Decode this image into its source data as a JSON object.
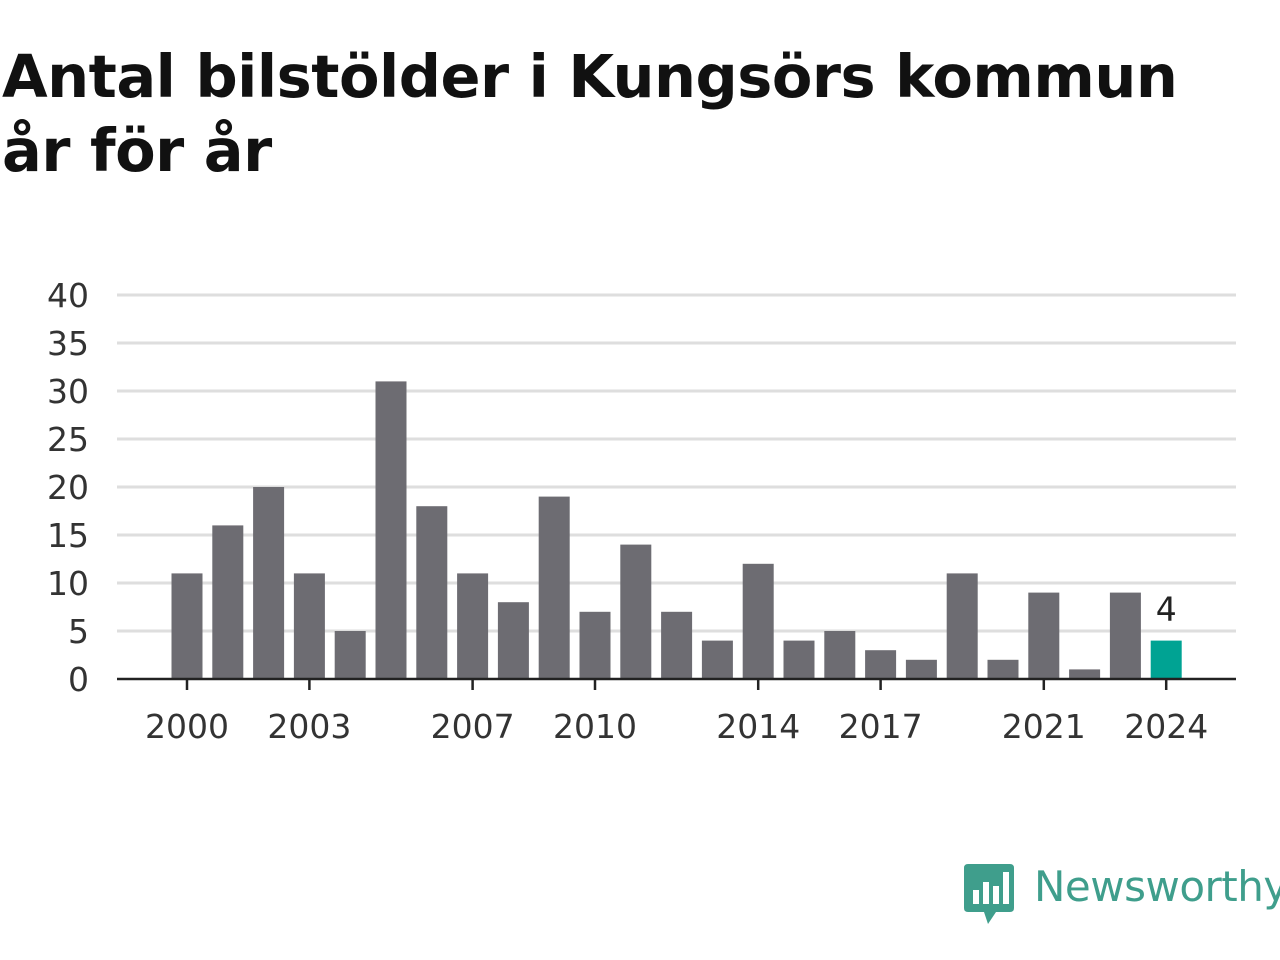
{
  "title": "Antal bilstölder i Kungsörs kommun år för år",
  "brand": {
    "name": "Newsworthy",
    "color": "#3f9e8c"
  },
  "colors": {
    "bar": "#6d6c72",
    "highlight": "#00a393",
    "grid": "#dedede"
  },
  "chart_data": {
    "type": "bar",
    "title": "Antal bilstölder i Kungsörs kommun år för år",
    "xlabel": "",
    "ylabel": "",
    "categories": [
      "2000",
      "2001",
      "2002",
      "2003",
      "2004",
      "2005",
      "2006",
      "2007",
      "2008",
      "2009",
      "2010",
      "2011",
      "2012",
      "2013",
      "2014",
      "2015",
      "2016",
      "2017",
      "2018",
      "2019",
      "2020",
      "2021",
      "2022",
      "2023",
      "2024"
    ],
    "values": [
      11,
      16,
      20,
      11,
      5,
      31,
      18,
      11,
      8,
      19,
      7,
      14,
      7,
      4,
      12,
      4,
      5,
      3,
      2,
      11,
      2,
      9,
      1,
      9,
      4
    ],
    "x_tick_labels": [
      "2000",
      "2003",
      "2007",
      "2010",
      "2014",
      "2017",
      "2021",
      "2024"
    ],
    "y_ticks": [
      0,
      5,
      10,
      15,
      20,
      25,
      30,
      35,
      40
    ],
    "ylim": [
      0,
      40
    ],
    "grid": true,
    "highlight": {
      "category": "2024",
      "label": "4"
    }
  }
}
